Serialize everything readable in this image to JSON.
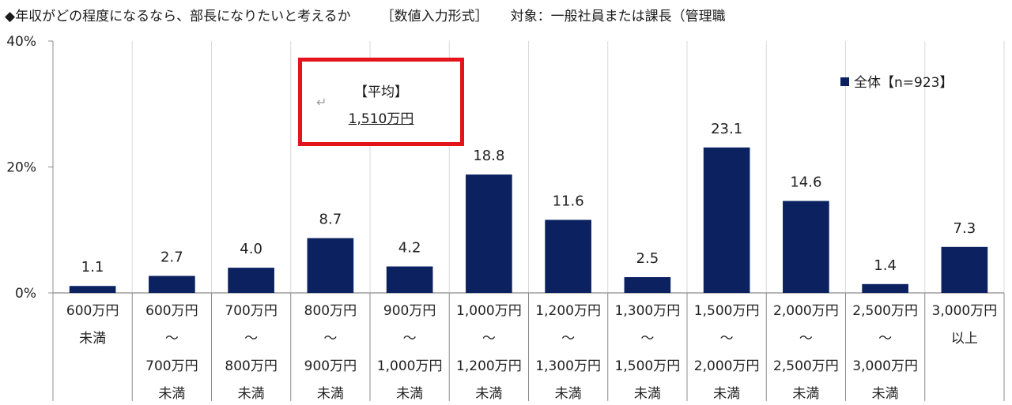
{
  "title": {
    "question": "◆年収がどの程度になるなら、部長になりたいと考えるか",
    "format": "［数値入力形式］",
    "target": "対象：一般社員または課長（管理職"
  },
  "average_box": {
    "label": "【平均】",
    "value": "1,510万円",
    "icon": "return-arrow-icon"
  },
  "colors": {
    "bar": "#0b2160",
    "highlight_border": "#e3141b",
    "grid": "#d9d9d9",
    "axis": "#8c8c8c"
  },
  "chart_data": {
    "type": "bar",
    "title": "",
    "xlabel": "",
    "ylabel": "",
    "ylim": [
      0,
      40
    ],
    "yticks": [
      "0%",
      "20%",
      "40%"
    ],
    "categories": [
      [
        "600万円",
        "未満"
      ],
      [
        "600万円",
        "～",
        "700万円",
        "未満"
      ],
      [
        "700万円",
        "～",
        "800万円",
        "未満"
      ],
      [
        "800万円",
        "～",
        "900万円",
        "未満"
      ],
      [
        "900万円",
        "～",
        "1,000万円",
        "未満"
      ],
      [
        "1,000万円",
        "～",
        "1,200万円",
        "未満"
      ],
      [
        "1,200万円",
        "～",
        "1,300万円",
        "未満"
      ],
      [
        "1,300万円",
        "～",
        "1,500万円",
        "未満"
      ],
      [
        "1,500万円",
        "～",
        "2,000万円",
        "未満"
      ],
      [
        "2,000万円",
        "～",
        "2,500万円",
        "未満"
      ],
      [
        "2,500万円",
        "～",
        "3,000万円",
        "未満"
      ],
      [
        "3,000万円",
        "以上"
      ]
    ],
    "series": [
      {
        "name": "全体【n=923】",
        "values": [
          1.1,
          2.7,
          4.0,
          8.7,
          4.2,
          18.8,
          11.6,
          2.5,
          23.1,
          14.6,
          1.4,
          7.3
        ],
        "labels": [
          "1.1",
          "2.7",
          "4.0",
          "8.7",
          "4.2",
          "18.8",
          "11.6",
          "2.5",
          "23.1",
          "14.6",
          "1.4",
          "7.3"
        ]
      }
    ],
    "legend_position": "top-right",
    "grid": "vertical"
  }
}
